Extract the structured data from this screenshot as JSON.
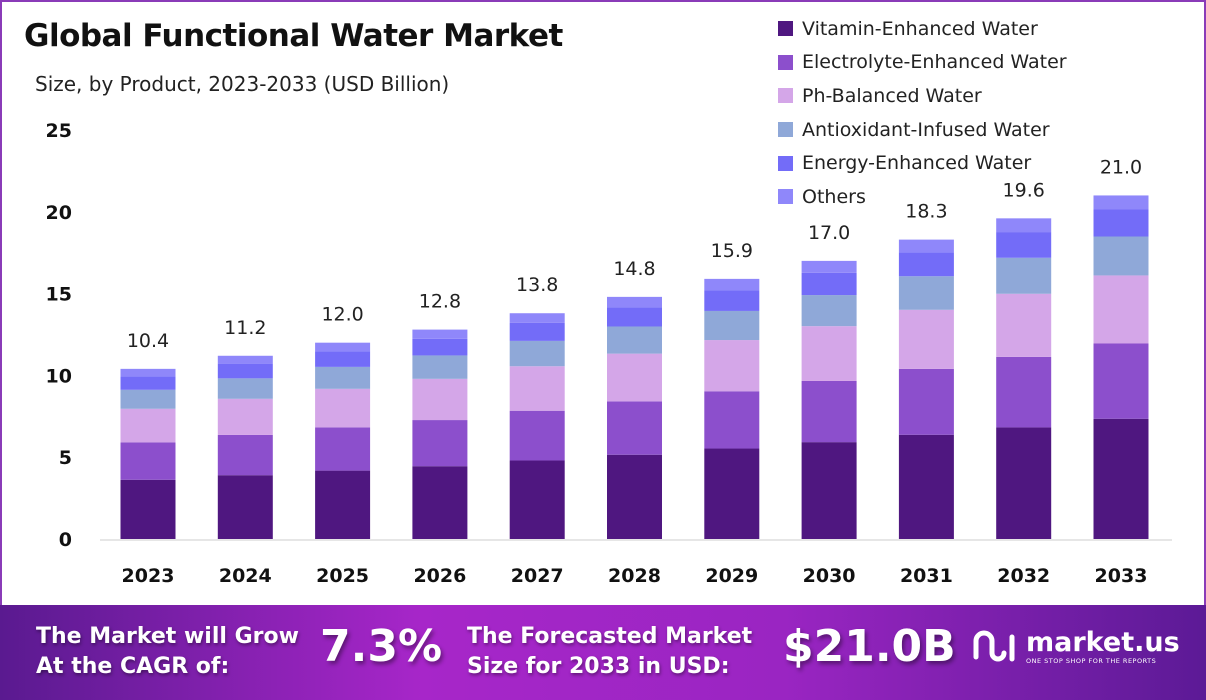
{
  "chart_data": {
    "type": "bar",
    "stacked": true,
    "title": "Global Functional Water Market",
    "subtitle": "Size, by Product, 2023-2033 (USD Billion)",
    "xlabel": "",
    "ylabel": "",
    "ylim": [
      0,
      25
    ],
    "yticks": [
      0,
      5,
      10,
      15,
      20,
      25
    ],
    "grid": false,
    "legend_position": "top-right",
    "categories": [
      "2023",
      "2024",
      "2025",
      "2026",
      "2027",
      "2028",
      "2029",
      "2030",
      "2031",
      "2032",
      "2033"
    ],
    "totals": [
      "10.4",
      "11.2",
      "12.0",
      "12.8",
      "13.8",
      "14.8",
      "15.9",
      "17.0",
      "18.3",
      "19.6",
      "21.0"
    ],
    "series": [
      {
        "name": "Vitamin-Enhanced Water",
        "color": "#4f1780",
        "values": [
          3.62,
          3.9,
          4.18,
          4.45,
          4.8,
          5.15,
          5.53,
          5.92,
          6.37,
          6.82,
          7.35
        ]
      },
      {
        "name": "Electrolyte-Enhanced Water",
        "color": "#8c4fcc",
        "values": [
          2.29,
          2.46,
          2.64,
          2.82,
          3.04,
          3.26,
          3.5,
          3.74,
          4.03,
          4.31,
          4.6
        ]
      },
      {
        "name": "Ph-Balanced Water",
        "color": "#d4a6e8",
        "values": [
          2.05,
          2.21,
          2.36,
          2.52,
          2.72,
          2.92,
          3.13,
          3.35,
          3.61,
          3.86,
          4.16
        ]
      },
      {
        "name": "Antioxidant-Infused Water",
        "color": "#8fa8d8",
        "values": [
          1.16,
          1.25,
          1.34,
          1.43,
          1.55,
          1.66,
          1.78,
          1.9,
          2.05,
          2.2,
          2.38
        ]
      },
      {
        "name": "Energy-Enhanced Water",
        "color": "#736cf8",
        "values": [
          0.83,
          0.9,
          0.96,
          1.02,
          1.1,
          1.18,
          1.27,
          1.36,
          1.46,
          1.57,
          1.65
        ]
      },
      {
        "name": "Others",
        "color": "#8f87fa",
        "values": [
          0.45,
          0.48,
          0.52,
          0.56,
          0.59,
          0.63,
          0.69,
          0.73,
          0.78,
          0.84,
          0.86
        ]
      }
    ]
  },
  "banner": {
    "cagr_label_1": "The Market will Grow",
    "cagr_label_2": "At the CAGR of:",
    "cagr_value": "7.3%",
    "forecast_label_1": "The Forecasted Market",
    "forecast_label_2": "Size for 2033 in USD:",
    "forecast_value": "$21.0B",
    "logo_name": "market.us",
    "logo_tagline": "ONE STOP SHOP FOR THE REPORTS"
  }
}
